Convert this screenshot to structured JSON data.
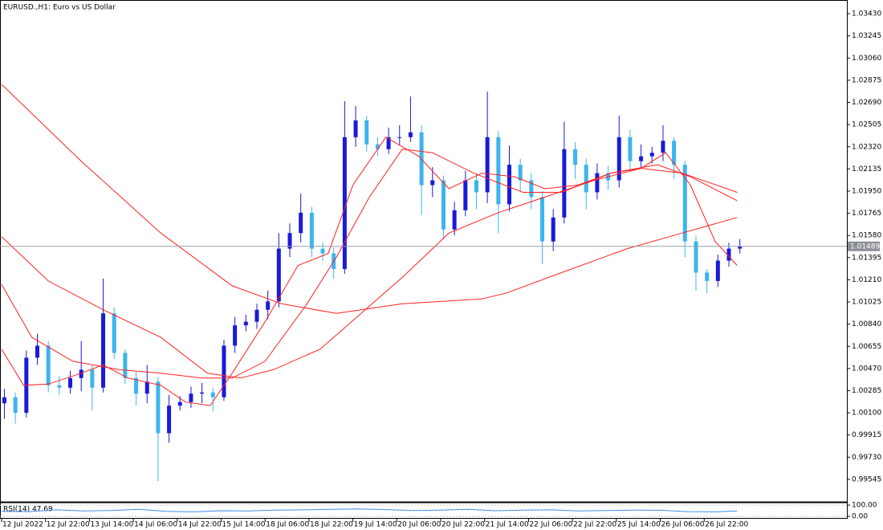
{
  "chart_data": [
    {
      "type": "candlestick",
      "title": "EURUSD.,H1:  Euro vs US Dollar",
      "bull_color": "#1a1ad8",
      "bear_color": "#3cb4ee",
      "x": [
        1,
        5,
        9,
        13,
        17,
        21,
        25,
        29,
        33,
        37,
        41,
        45,
        49,
        53,
        57,
        61,
        65,
        69,
        73,
        77,
        81,
        85,
        89,
        93,
        97,
        101,
        105,
        109,
        113,
        117,
        121,
        125,
        129,
        133,
        137,
        141,
        145,
        149,
        153,
        157,
        161,
        165,
        169,
        173,
        177,
        181,
        185,
        189,
        193,
        197,
        201,
        205,
        209,
        213,
        217,
        221,
        225,
        229,
        233,
        237,
        241,
        245,
        249,
        253,
        257,
        261,
        265,
        269
      ],
      "open": [
        1.0018,
        1.0023,
        1.001,
        1.0056,
        1.0066,
        1.0033,
        1.0031,
        1.0039,
        1.0046,
        1.0031,
        1.0093,
        1.006,
        1.0039,
        1.0026,
        1.0036,
        0.9993,
        1.0016,
        1.0019,
        1.0026,
        1.0027,
        1.0023,
        1.0066,
        1.0083,
        1.0086,
        1.0096,
        1.0103,
        1.0147,
        1.016,
        1.0177,
        1.0147,
        1.0143,
        1.013,
        1.024,
        1.0254,
        1.0234,
        1.023,
        1.024,
        1.024,
        1.0244,
        1.02,
        1.0204,
        1.0163,
        1.0179,
        1.0204,
        1.0194,
        1.024,
        1.0184,
        1.0217,
        1.0204,
        1.019,
        1.0153,
        1.0173,
        1.023,
        1.0217,
        1.0194,
        1.021,
        1.0204,
        1.024,
        1.022,
        1.0224,
        1.0227,
        1.0237,
        1.0217,
        1.0153,
        1.0127,
        1.012,
        1.0137,
        1.0147
      ],
      "high": [
        1.003,
        1.0027,
        1.0062,
        1.0076,
        1.007,
        1.0041,
        1.0045,
        1.007,
        1.005,
        1.0122,
        1.0098,
        1.0063,
        1.0044,
        1.005,
        1.004,
        1.0025,
        1.0024,
        1.0032,
        1.0035,
        1.0031,
        1.0071,
        1.009,
        1.0092,
        1.0101,
        1.0112,
        1.016,
        1.0168,
        1.0193,
        1.0182,
        1.0152,
        1.0148,
        1.027,
        1.0266,
        1.0258,
        1.024,
        1.0248,
        1.025,
        1.0274,
        1.025,
        1.0215,
        1.0208,
        1.0186,
        1.0212,
        1.021,
        1.0278,
        1.0245,
        1.0233,
        1.0222,
        1.021,
        1.0195,
        1.018,
        1.0253,
        1.0236,
        1.0222,
        1.0218,
        1.0216,
        1.0258,
        1.0246,
        1.0234,
        1.0232,
        1.025,
        1.024,
        1.022,
        1.0158,
        1.013,
        1.0142,
        1.0152,
        1.0155
      ],
      "low": [
        1.0005,
        1.0001,
        1.0006,
        1.005,
        1.0027,
        1.0025,
        1.0026,
        1.0028,
        1.0012,
        1.0027,
        1.0055,
        1.0034,
        1.0016,
        1.0018,
        0.9953,
        0.9985,
        1.0012,
        1.0014,
        1.0018,
        1.0011,
        1.002,
        1.006,
        1.0078,
        1.008,
        1.0088,
        1.0098,
        1.014,
        1.0152,
        1.014,
        1.0137,
        1.0122,
        1.0126,
        1.0232,
        1.0228,
        1.0224,
        1.0226,
        1.0233,
        1.0236,
        1.0175,
        1.019,
        1.0155,
        1.0158,
        1.0174,
        1.018,
        1.0185,
        1.016,
        1.0178,
        1.0195,
        1.018,
        1.0134,
        1.0145,
        1.0168,
        1.0205,
        1.018,
        1.0188,
        1.0196,
        1.0198,
        1.0212,
        1.0214,
        1.0218,
        1.022,
        1.0205,
        1.014,
        1.0112,
        1.011,
        1.0115,
        1.0132,
        1.0143
      ],
      "close": [
        1.0023,
        1.001,
        1.0056,
        1.0066,
        1.0033,
        1.0031,
        1.0039,
        1.0046,
        1.0031,
        1.0093,
        1.006,
        1.0039,
        1.0026,
        1.0036,
        0.9993,
        1.0016,
        1.0019,
        1.0026,
        1.0027,
        1.0023,
        1.0066,
        1.0083,
        1.0086,
        1.0096,
        1.0103,
        1.0147,
        1.016,
        1.0177,
        1.0147,
        1.0143,
        1.013,
        1.024,
        1.0254,
        1.0234,
        1.023,
        1.024,
        1.024,
        1.0244,
        1.02,
        1.0204,
        1.0163,
        1.0179,
        1.0204,
        1.0194,
        1.024,
        1.0184,
        1.0217,
        1.0204,
        1.019,
        1.0153,
        1.0173,
        1.023,
        1.0217,
        1.0194,
        1.021,
        1.0204,
        1.024,
        1.022,
        1.0224,
        1.0227,
        1.0237,
        1.0217,
        1.0153,
        1.0127,
        1.012,
        1.0137,
        1.0147,
        1.01489
      ],
      "series": [
        {
          "color": "#ff2020",
          "x": [
            0,
            29,
            58,
            84,
            102,
            122,
            146,
            175,
            184,
            204,
            228,
            248,
            268
          ],
          "values": [
            1.0284,
            1.022,
            1.016,
            1.0116,
            1.0101,
            1.0093,
            1.0101,
            1.0105,
            1.011,
            1.0127,
            1.0147,
            1.016,
            1.0173
          ]
        },
        {
          "color": "#ff2020",
          "x": [
            0,
            17,
            37,
            58,
            75,
            87,
            99,
            116,
            131,
            146,
            163,
            181,
            198,
            216,
            233,
            248,
            268
          ],
          "values": [
            1.0157,
            1.012,
            1.0096,
            1.0073,
            1.0043,
            1.0039,
            1.0046,
            1.0063,
            1.0093,
            1.0123,
            1.016,
            1.0177,
            1.019,
            1.0204,
            1.0214,
            1.021,
            1.0194
          ]
        },
        {
          "color": "#ff2020",
          "x": [
            0,
            11,
            26,
            43,
            58,
            73,
            84,
            96,
            111,
            122,
            134,
            146,
            157,
            172,
            190,
            204,
            222,
            239,
            251,
            268
          ],
          "values": [
            1.0117,
            1.0073,
            1.0053,
            1.0046,
            1.0043,
            1.0039,
            1.0039,
            1.0053,
            1.01,
            1.014,
            1.019,
            1.023,
            1.0227,
            1.021,
            1.0194,
            1.0194,
            1.021,
            1.0217,
            1.0207,
            1.0187
          ]
        },
        {
          "color": "#ff2020",
          "x": [
            0,
            8,
            17,
            29,
            37,
            46,
            58,
            67,
            76,
            84,
            96,
            108,
            119,
            128,
            140,
            152,
            163,
            175,
            187,
            198,
            210,
            222,
            233,
            242,
            251,
            260,
            268
          ],
          "values": [
            1.0063,
            1.0033,
            1.0034,
            1.0043,
            1.005,
            1.0039,
            1.0033,
            1.0019,
            1.0016,
            1.0043,
            1.0086,
            1.0133,
            1.0143,
            1.02,
            1.024,
            1.0224,
            1.0197,
            1.021,
            1.0207,
            1.0197,
            1.02,
            1.021,
            1.0214,
            1.0227,
            1.02,
            1.0153,
            1.0133
          ]
        }
      ],
      "last_price": 1.01489,
      "xlim": [
        -0.6,
        308
      ],
      "ylim": [
        0.99357,
        1.03531
      ],
      "yticks": [
        {
          "value": 1.0343,
          "label": "1.03430"
        },
        1.03245,
        {
          "value": 1.0306,
          "label": "1.03060"
        },
        1.02875,
        {
          "value": 1.0269,
          "label": "1.02690"
        },
        1.02505,
        {
          "value": 1.0232,
          "label": "1.02320"
        },
        1.02135,
        {
          "value": 1.0195,
          "label": "1.01950"
        },
        1.01765,
        {
          "value": 1.0158,
          "label": "1.01580"
        },
        1.01395,
        {
          "value": 1.0121,
          "label": "1.01210"
        },
        1.01025,
        {
          "value": 1.0084,
          "label": "1.00840"
        },
        1.00655,
        {
          "value": 1.0047,
          "label": "1.00470"
        },
        1.00285,
        {
          "value": 1.001,
          "label": "1.00100"
        },
        0.99915,
        {
          "value": 0.9973,
          "label": "0.99730"
        },
        0.99545
      ],
      "xticks": [
        {
          "value": 0,
          "label": "12 Jul 2022"
        },
        {
          "value": 16,
          "label": "12 Jul 22:00"
        },
        {
          "value": 32,
          "label": "13 Jul 14:00"
        },
        {
          "value": 48,
          "label": "14 Jul 06:00"
        },
        {
          "value": 64,
          "label": "14 Jul 22:00"
        },
        {
          "value": 80,
          "label": "15 Jul 14:00"
        },
        {
          "value": 96,
          "label": "18 Jul 06:00"
        },
        {
          "value": 112,
          "label": "18 Jul 22:00"
        },
        {
          "value": 128,
          "label": "19 Jul 14:00"
        },
        {
          "value": 144,
          "label": "20 Jul 06:00"
        },
        {
          "value": 160,
          "label": "20 Jul 22:00"
        },
        {
          "value": 176,
          "label": "21 Jul 14:00"
        },
        {
          "value": 192,
          "label": "22 Jul 06:00"
        },
        {
          "value": 208,
          "label": "22 Jul 22:00"
        },
        {
          "value": 224,
          "label": "25 Jul 14:00"
        },
        {
          "value": 240,
          "label": "26 Jul 06:00"
        },
        {
          "value": 256,
          "label": "26 Jul 22:00"
        }
      ]
    },
    {
      "type": "line",
      "title": "RSI(14) 47.69",
      "color": "#3c8ce6",
      "x": [
        0,
        10,
        20,
        30,
        40,
        50,
        60,
        70,
        80,
        90,
        100,
        110,
        120,
        130,
        140,
        150,
        160,
        170,
        180,
        190,
        200,
        210,
        220,
        230,
        240,
        250,
        260,
        268
      ],
      "values": [
        45,
        42,
        58,
        48,
        52,
        62,
        45,
        40,
        50,
        48,
        55,
        58,
        63,
        66,
        60,
        52,
        55,
        62,
        50,
        55,
        58,
        48,
        52,
        56,
        54,
        42,
        40,
        47.69
      ],
      "ylim": [
        0,
        100
      ],
      "yticks": [
        {
          "value": 100,
          "label": "100.00"
        },
        {
          "value": 0,
          "label": "0.00"
        }
      ]
    }
  ]
}
